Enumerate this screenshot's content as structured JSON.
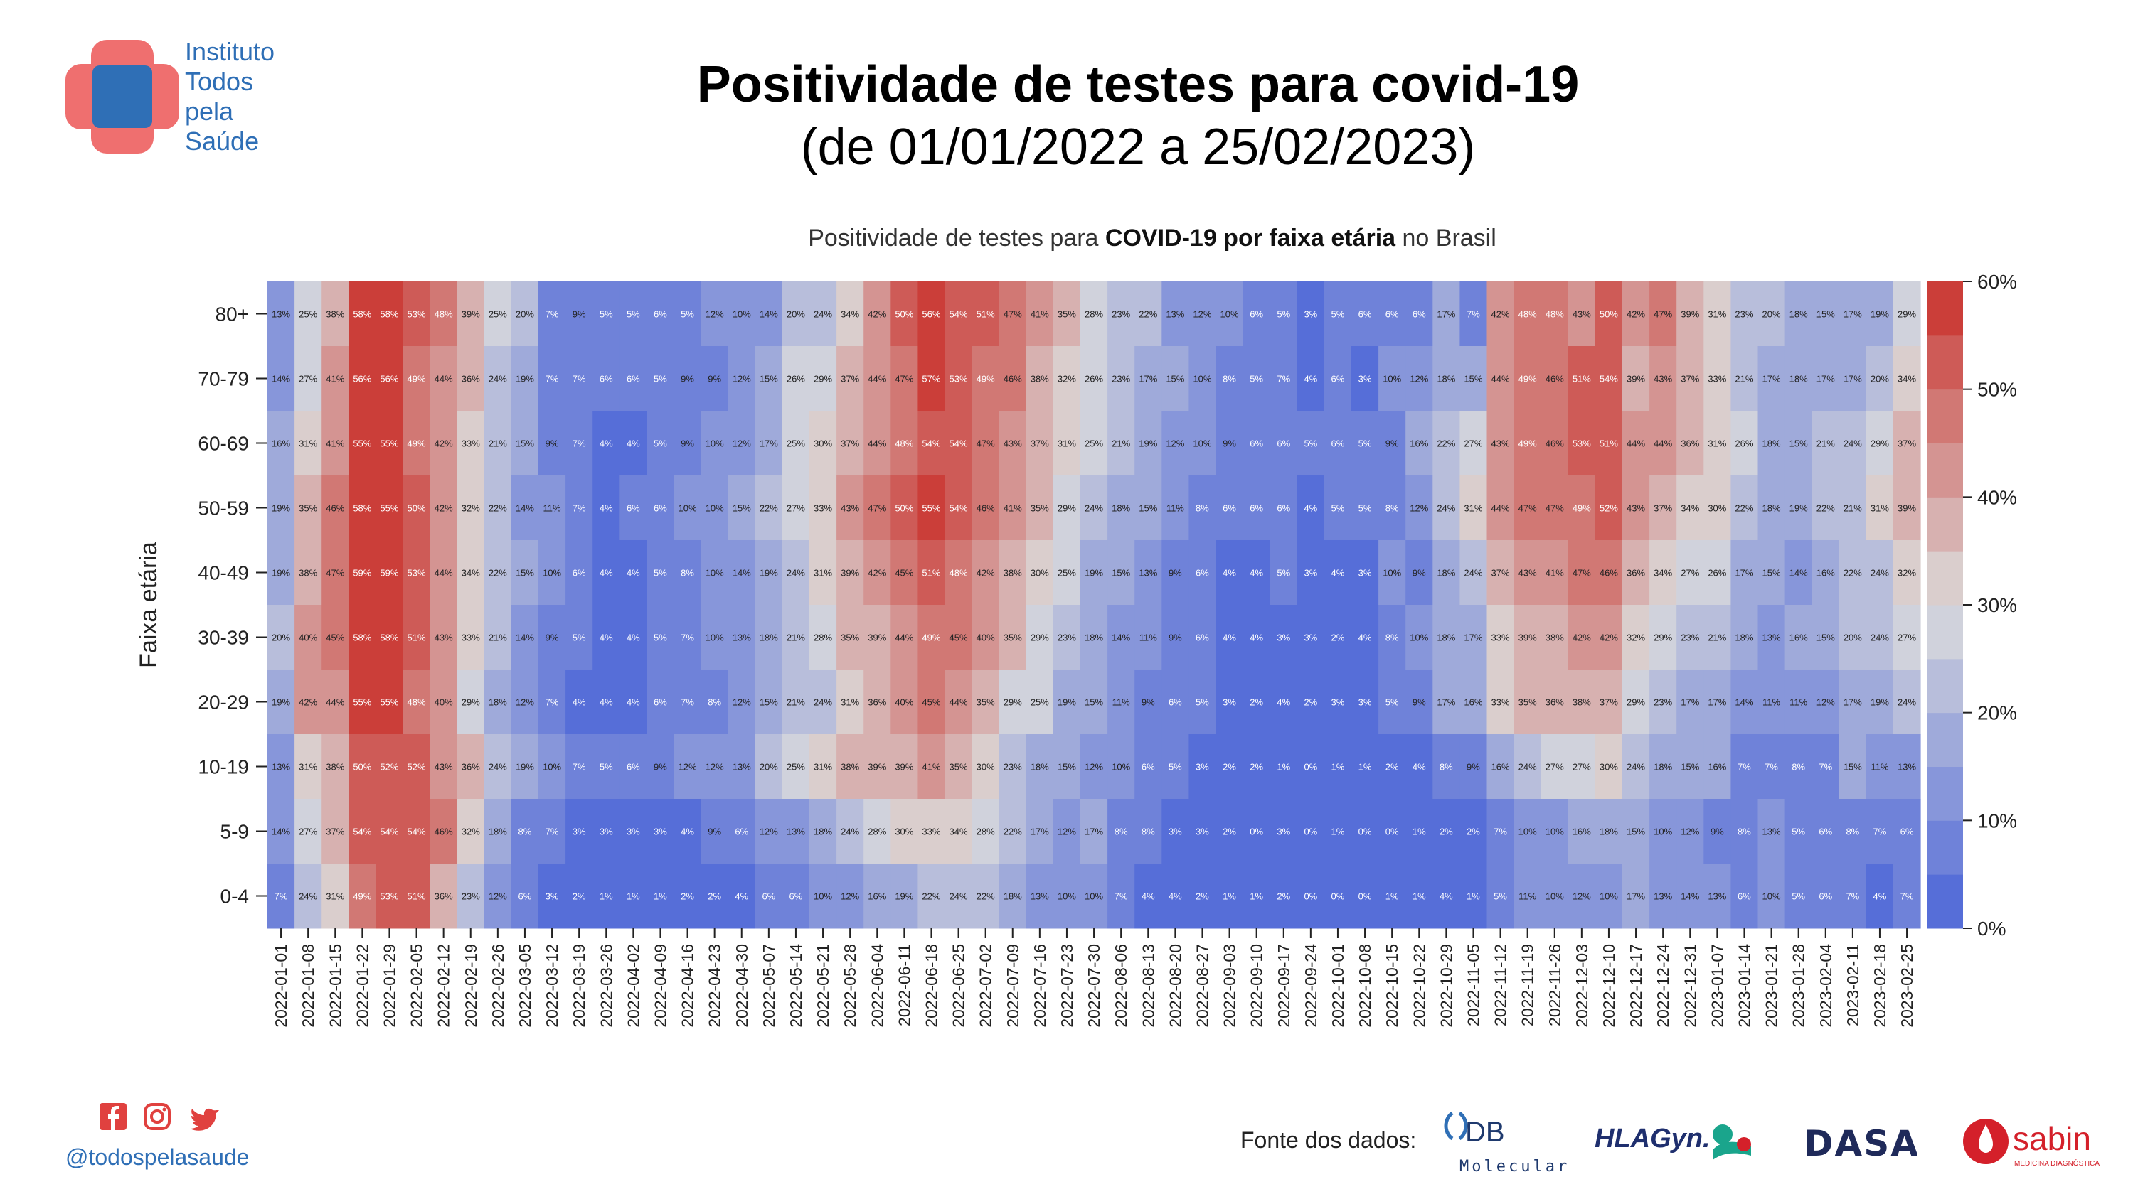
{
  "header": {
    "org_name_lines": [
      "Instituto",
      "Todos",
      "pela",
      "Saúde"
    ],
    "title": "Positividade de testes para covid-19",
    "subtitle": "(de 01/01/2022 a 25/02/2023)"
  },
  "chart_header": {
    "prefix": "Positividade de testes para ",
    "bold": "COVID-19 por faixa etária",
    "suffix": " no Brasil"
  },
  "colors": {
    "scale_low": "#4a64d8",
    "scale_mid": "#dcdcdc",
    "scale_high": "#c9302a",
    "brand_blue": "#2f6fb6",
    "logo_red": "#ef6f6f",
    "sabin_red": "#d4202a"
  },
  "chart_data": {
    "type": "heatmap",
    "ylabel": "Faixa etária",
    "xlabel": "",
    "rows": [
      "80+",
      "70-79",
      "60-69",
      "50-59",
      "40-49",
      "30-39",
      "20-29",
      "10-19",
      "5-9",
      "0-4"
    ],
    "columns": [
      "2022-01-01",
      "2022-01-08",
      "2022-01-15",
      "2022-01-22",
      "2022-01-29",
      "2022-02-05",
      "2022-02-12",
      "2022-02-19",
      "2022-02-26",
      "2022-03-05",
      "2022-03-12",
      "2022-03-19",
      "2022-03-26",
      "2022-04-02",
      "2022-04-09",
      "2022-04-16",
      "2022-04-23",
      "2022-04-30",
      "2022-05-07",
      "2022-05-14",
      "2022-05-21",
      "2022-05-28",
      "2022-06-04",
      "2022-06-11",
      "2022-06-18",
      "2022-06-25",
      "2022-07-02",
      "2022-07-09",
      "2022-07-16",
      "2022-07-23",
      "2022-07-30",
      "2022-08-06",
      "2022-08-13",
      "2022-08-20",
      "2022-08-27",
      "2022-09-03",
      "2022-09-10",
      "2022-09-17",
      "2022-09-24",
      "2022-10-01",
      "2022-10-08",
      "2022-10-15",
      "2022-10-22",
      "2022-10-29",
      "2022-11-05",
      "2022-11-12",
      "2022-11-19",
      "2022-11-26",
      "2022-12-03",
      "2022-12-10",
      "2022-12-17",
      "2022-12-24",
      "2022-12-31",
      "2023-01-07",
      "2023-01-14",
      "2023-01-21",
      "2023-01-28",
      "2023-02-04",
      "2023-02-11",
      "2023-02-18",
      "2023-02-25"
    ],
    "values": [
      [
        13,
        25,
        38,
        58,
        58,
        53,
        48,
        39,
        25,
        20,
        7,
        9,
        5,
        5,
        6,
        5,
        12,
        10,
        14,
        20,
        24,
        34,
        42,
        50,
        56,
        54,
        51,
        47,
        41,
        35,
        28,
        23,
        22,
        13,
        12,
        10,
        6,
        5,
        3,
        5,
        6,
        6,
        6,
        17,
        7,
        42,
        48,
        48,
        43,
        50,
        42,
        47,
        39,
        31,
        23,
        20,
        18,
        15,
        17,
        19,
        29
      ],
      [
        14,
        27,
        41,
        56,
        56,
        49,
        44,
        36,
        24,
        19,
        7,
        7,
        6,
        6,
        5,
        9,
        9,
        12,
        15,
        26,
        29,
        37,
        44,
        47,
        57,
        53,
        49,
        46,
        38,
        32,
        26,
        23,
        17,
        15,
        10,
        8,
        5,
        7,
        4,
        6,
        3,
        10,
        12,
        18,
        15,
        44,
        49,
        46,
        51,
        54,
        39,
        43,
        37,
        33,
        21,
        17,
        18,
        17,
        17,
        20,
        34
      ],
      [
        16,
        31,
        41,
        55,
        55,
        49,
        42,
        33,
        21,
        15,
        9,
        7,
        4,
        4,
        5,
        9,
        10,
        12,
        17,
        25,
        30,
        37,
        44,
        48,
        54,
        54,
        47,
        43,
        37,
        31,
        25,
        21,
        19,
        12,
        10,
        9,
        6,
        6,
        5,
        6,
        5,
        9,
        16,
        22,
        27,
        43,
        49,
        46,
        53,
        51,
        44,
        44,
        36,
        31,
        26,
        18,
        15,
        21,
        24,
        29,
        37
      ],
      [
        19,
        35,
        46,
        58,
        55,
        50,
        42,
        32,
        22,
        14,
        11,
        7,
        4,
        6,
        6,
        10,
        10,
        15,
        22,
        27,
        33,
        43,
        47,
        50,
        55,
        54,
        46,
        41,
        35,
        29,
        24,
        18,
        15,
        11,
        8,
        6,
        6,
        6,
        4,
        5,
        5,
        8,
        12,
        24,
        31,
        44,
        47,
        47,
        49,
        52,
        43,
        37,
        34,
        30,
        22,
        18,
        19,
        22,
        21,
        31,
        39
      ],
      [
        19,
        38,
        47,
        59,
        59,
        53,
        44,
        34,
        22,
        15,
        10,
        6,
        4,
        4,
        5,
        8,
        10,
        14,
        19,
        24,
        31,
        39,
        42,
        45,
        51,
        48,
        42,
        38,
        30,
        25,
        19,
        15,
        13,
        9,
        6,
        4,
        4,
        5,
        3,
        4,
        3,
        10,
        9,
        18,
        24,
        37,
        43,
        41,
        47,
        46,
        36,
        34,
        27,
        26,
        17,
        15,
        14,
        16,
        22,
        24,
        32
      ],
      [
        20,
        40,
        45,
        58,
        58,
        51,
        43,
        33,
        21,
        14,
        9,
        5,
        4,
        4,
        5,
        7,
        10,
        13,
        18,
        21,
        28,
        35,
        39,
        44,
        49,
        45,
        40,
        35,
        29,
        23,
        18,
        14,
        11,
        9,
        6,
        4,
        4,
        3,
        3,
        2,
        4,
        8,
        10,
        18,
        17,
        33,
        39,
        38,
        42,
        42,
        32,
        29,
        23,
        21,
        18,
        13,
        16,
        15,
        20,
        24,
        27
      ],
      [
        19,
        42,
        44,
        55,
        55,
        48,
        40,
        29,
        18,
        12,
        7,
        4,
        4,
        4,
        6,
        7,
        8,
        12,
        15,
        21,
        24,
        31,
        36,
        40,
        45,
        44,
        35,
        29,
        25,
        19,
        15,
        11,
        9,
        6,
        5,
        3,
        2,
        4,
        2,
        3,
        3,
        5,
        9,
        17,
        16,
        33,
        35,
        36,
        38,
        37,
        29,
        23,
        17,
        17,
        14,
        11,
        11,
        12,
        17,
        19,
        24
      ],
      [
        13,
        31,
        38,
        50,
        52,
        52,
        43,
        36,
        24,
        19,
        10,
        7,
        5,
        6,
        9,
        12,
        12,
        13,
        20,
        25,
        31,
        38,
        39,
        39,
        41,
        35,
        30,
        23,
        18,
        15,
        12,
        10,
        6,
        5,
        3,
        2,
        2,
        1,
        0,
        1,
        1,
        2,
        4,
        8,
        9,
        16,
        24,
        27,
        27,
        30,
        24,
        18,
        15,
        16,
        7,
        7,
        8,
        7,
        15,
        11,
        13
      ],
      [
        14,
        27,
        37,
        54,
        54,
        54,
        46,
        32,
        18,
        8,
        7,
        3,
        3,
        3,
        3,
        4,
        9,
        6,
        12,
        13,
        18,
        24,
        28,
        30,
        33,
        34,
        28,
        22,
        17,
        12,
        17,
        8,
        8,
        3,
        3,
        2,
        0,
        3,
        0,
        1,
        0,
        0,
        1,
        2,
        2,
        7,
        10,
        10,
        16,
        18,
        15,
        10,
        12,
        9,
        8,
        13,
        5,
        6,
        8,
        7,
        6
      ],
      [
        7,
        24,
        31,
        49,
        53,
        51,
        36,
        23,
        12,
        6,
        3,
        2,
        1,
        1,
        1,
        2,
        2,
        4,
        6,
        6,
        10,
        12,
        16,
        19,
        22,
        24,
        22,
        18,
        13,
        10,
        10,
        7,
        4,
        4,
        2,
        1,
        1,
        2,
        0,
        0,
        0,
        1,
        1,
        4,
        1,
        5,
        11,
        10,
        12,
        10,
        17,
        13,
        14,
        13,
        6,
        10,
        5,
        6,
        7,
        4,
        7
      ]
    ],
    "vmin": 0,
    "vmax": 60,
    "colorbar_ticks": [
      "0%",
      "10%",
      "20%",
      "30%",
      "40%",
      "50%",
      "60%"
    ],
    "value_suffix": "%"
  },
  "footer": {
    "handle": "@todospelasaude",
    "fonte_label": "Fonte dos dados:",
    "social_icons": [
      "facebook-icon",
      "instagram-icon",
      "twitter-icon"
    ],
    "partners": [
      {
        "name": "DB",
        "sub": "Molecular"
      },
      {
        "name": "HLAGyn."
      },
      {
        "name": "DASA"
      },
      {
        "name": "sabin",
        "sub": "MEDICINA DIAGNÓSTICA"
      }
    ]
  }
}
